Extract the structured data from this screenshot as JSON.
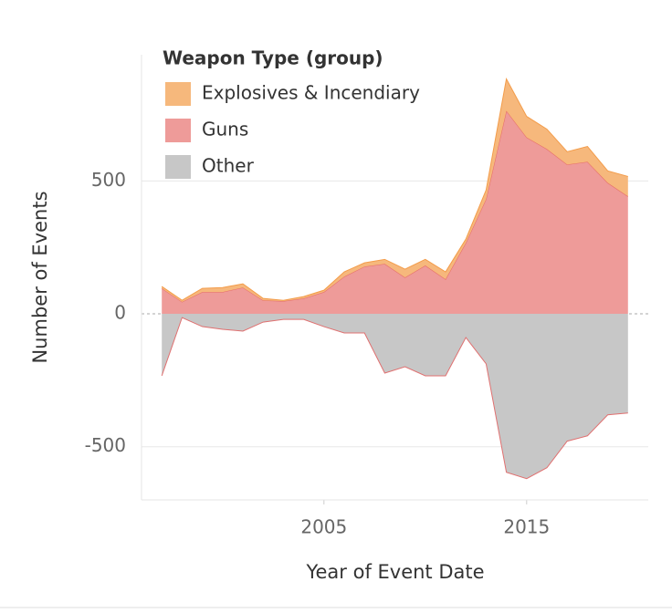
{
  "chart_data": {
    "type": "area",
    "stacked": true,
    "legend_title": "Weapon Type (group)",
    "x_label": "Year of Event Date",
    "y_label": "Number of Events",
    "x": [
      1997,
      1998,
      1999,
      2000,
      2001,
      2002,
      2003,
      2004,
      2005,
      2006,
      2007,
      2008,
      2009,
      2010,
      2011,
      2012,
      2013,
      2014,
      2015,
      2016,
      2017,
      2018,
      2019,
      2020
    ],
    "series": [
      {
        "name": "Explosives & Incendiary",
        "color": "#f6b87c",
        "line": "#f39c4a",
        "values": [
          7,
          6,
          14,
          17,
          14,
          7,
          3,
          7,
          7,
          18,
          14,
          17,
          31,
          23,
          28,
          14,
          34,
          120,
          79,
          75,
          48,
          58,
          45,
          75
        ]
      },
      {
        "name": "Guns",
        "color": "#ee9b99",
        "line": "#e66a66",
        "values": [
          96,
          45,
          82,
          82,
          99,
          51,
          48,
          58,
          82,
          140,
          178,
          188,
          137,
          182,
          130,
          267,
          432,
          764,
          664,
          620,
          562,
          572,
          493,
          442
        ]
      },
      {
        "name": "Other",
        "color": "#c7c7c7",
        "line": "#e07070",
        "values": [
          -233,
          -14,
          -48,
          -58,
          -65,
          -31,
          -21,
          -21,
          -48,
          -72,
          -72,
          -223,
          -199,
          -233,
          -233,
          -89,
          -188,
          -596,
          -620,
          -579,
          -479,
          -459,
          -380,
          -373
        ]
      }
    ],
    "xlim": [
      1996,
      2021
    ],
    "xticks": [
      2005,
      2015
    ],
    "ylim": [
      -700,
      975
    ],
    "yticks": [
      -500,
      0,
      500
    ],
    "grid": true
  }
}
